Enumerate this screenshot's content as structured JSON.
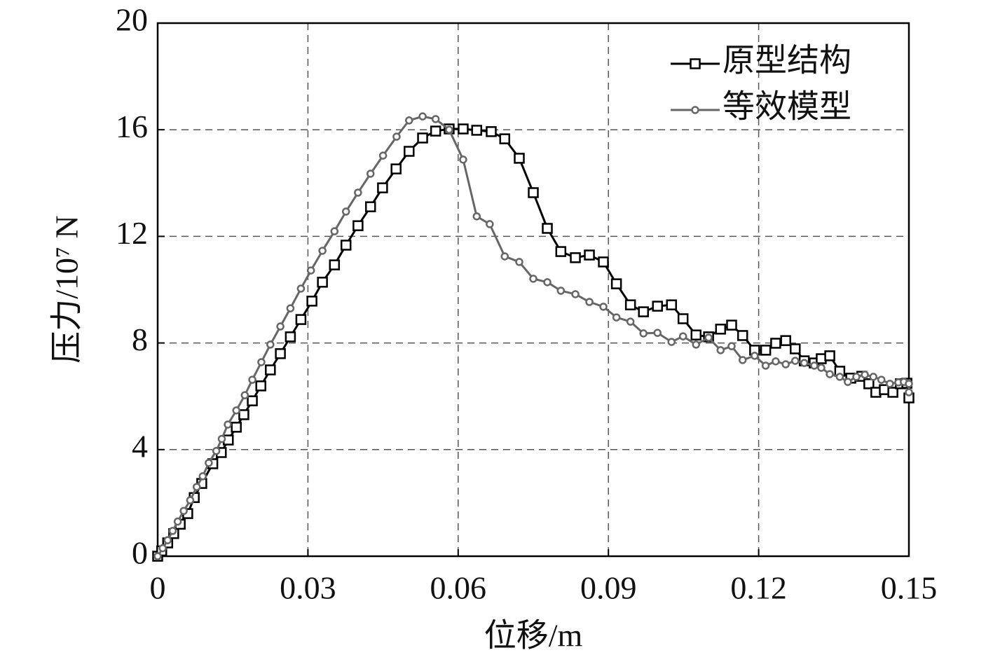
{
  "chart_data": {
    "type": "line",
    "xlabel": "位移/m",
    "ylabel": "压力/10⁷ N",
    "xlim": [
      0,
      0.15
    ],
    "xticks": [
      0,
      0.03,
      0.06,
      0.09,
      0.12,
      0.15
    ],
    "ylim": [
      0,
      20
    ],
    "yticks": [
      0,
      4,
      8,
      12,
      16,
      20
    ],
    "grid": true,
    "legend": "upper right",
    "series": [
      {
        "name": "原型结构",
        "color": "#000000",
        "marker": "square",
        "x": [
          0,
          0.0008,
          0.002,
          0.0032,
          0.0045,
          0.006,
          0.0073,
          0.0088,
          0.011,
          0.0127,
          0.0141,
          0.0157,
          0.0172,
          0.0189,
          0.0206,
          0.0225,
          0.0245,
          0.0265,
          0.0286,
          0.0308,
          0.0329,
          0.0353,
          0.0376,
          0.04,
          0.0425,
          0.0449,
          0.0476,
          0.0502,
          0.0529,
          0.0555,
          0.0582,
          0.061,
          0.0637,
          0.0666,
          0.0693,
          0.0722,
          0.075,
          0.0778,
          0.0805,
          0.0834,
          0.0862,
          0.089,
          0.0916,
          0.0944,
          0.097,
          0.0998,
          0.1026,
          0.1049,
          0.1075,
          0.11,
          0.1124,
          0.1146,
          0.1168,
          0.1192,
          0.1214,
          0.1234,
          0.1254,
          0.1273,
          0.1291,
          0.1311,
          0.1325,
          0.1342,
          0.1362,
          0.1384,
          0.1406,
          0.142,
          0.1434,
          0.1451,
          0.1468,
          0.1483,
          0.1496,
          0.15
        ],
        "values": [
          0,
          0.2,
          0.5,
          0.85,
          1.2,
          1.6,
          2.2,
          2.73,
          3.47,
          3.89,
          4.36,
          4.84,
          5.31,
          5.83,
          6.39,
          6.99,
          7.6,
          8.23,
          8.88,
          9.57,
          10.28,
          10.93,
          11.67,
          12.4,
          13.11,
          13.82,
          14.53,
          15.19,
          15.69,
          15.95,
          16.03,
          16.03,
          15.98,
          15.93,
          15.66,
          14.93,
          13.64,
          12.3,
          11.43,
          11.2,
          11.3,
          11.04,
          10.22,
          9.43,
          9.17,
          9.38,
          9.43,
          8.91,
          8.3,
          8.23,
          8.52,
          8.67,
          8.28,
          7.73,
          7.73,
          7.99,
          8.09,
          7.78,
          7.33,
          7.25,
          7.41,
          7.52,
          6.94,
          6.68,
          6.75,
          6.47,
          6.15,
          6.25,
          6.15,
          6.47,
          6.49,
          5.94
        ]
      },
      {
        "name": "等效模型",
        "color": "#666666",
        "marker": "circle",
        "x": [
          0,
          0.001,
          0.002,
          0.003,
          0.004,
          0.0052,
          0.0065,
          0.0078,
          0.009,
          0.0102,
          0.0117,
          0.0128,
          0.014,
          0.0157,
          0.0174,
          0.0189,
          0.0207,
          0.0225,
          0.0245,
          0.0265,
          0.0286,
          0.0306,
          0.0329,
          0.0353,
          0.0376,
          0.04,
          0.0425,
          0.045,
          0.0477,
          0.0502,
          0.0529,
          0.0555,
          0.0582,
          0.061,
          0.0637,
          0.0663,
          0.0693,
          0.0722,
          0.075,
          0.0778,
          0.0805,
          0.0834,
          0.0862,
          0.089,
          0.0916,
          0.0944,
          0.097,
          0.0998,
          0.1026,
          0.1049,
          0.1075,
          0.11,
          0.1124,
          0.1146,
          0.1168,
          0.1192,
          0.1214,
          0.1234,
          0.1254,
          0.1273,
          0.1291,
          0.1311,
          0.1325,
          0.1342,
          0.1362,
          0.1378,
          0.1395,
          0.1412,
          0.1429,
          0.1445,
          0.1462,
          0.1479,
          0.149,
          0.15,
          0.15
        ],
        "values": [
          0,
          0.3,
          0.6,
          0.95,
          1.3,
          1.7,
          2.1,
          2.6,
          3.0,
          3.5,
          3.95,
          4.4,
          4.94,
          5.47,
          6.04,
          6.62,
          7.28,
          7.94,
          8.62,
          9.3,
          10.04,
          10.72,
          11.46,
          12.19,
          12.93,
          13.64,
          14.35,
          15.03,
          15.74,
          16.35,
          16.5,
          16.4,
          16.0,
          14.88,
          12.75,
          12.46,
          11.25,
          11.04,
          10.41,
          10.28,
          9.96,
          9.83,
          9.54,
          9.36,
          8.96,
          8.8,
          8.36,
          8.38,
          8.04,
          8.25,
          7.94,
          8.2,
          7.73,
          7.88,
          7.36,
          7.52,
          7.15,
          7.31,
          7.2,
          7.33,
          7.25,
          7.15,
          7.07,
          6.83,
          6.73,
          6.54,
          6.73,
          6.81,
          6.73,
          6.62,
          6.47,
          6.52,
          6.54,
          6.47,
          6.15
        ]
      }
    ]
  }
}
